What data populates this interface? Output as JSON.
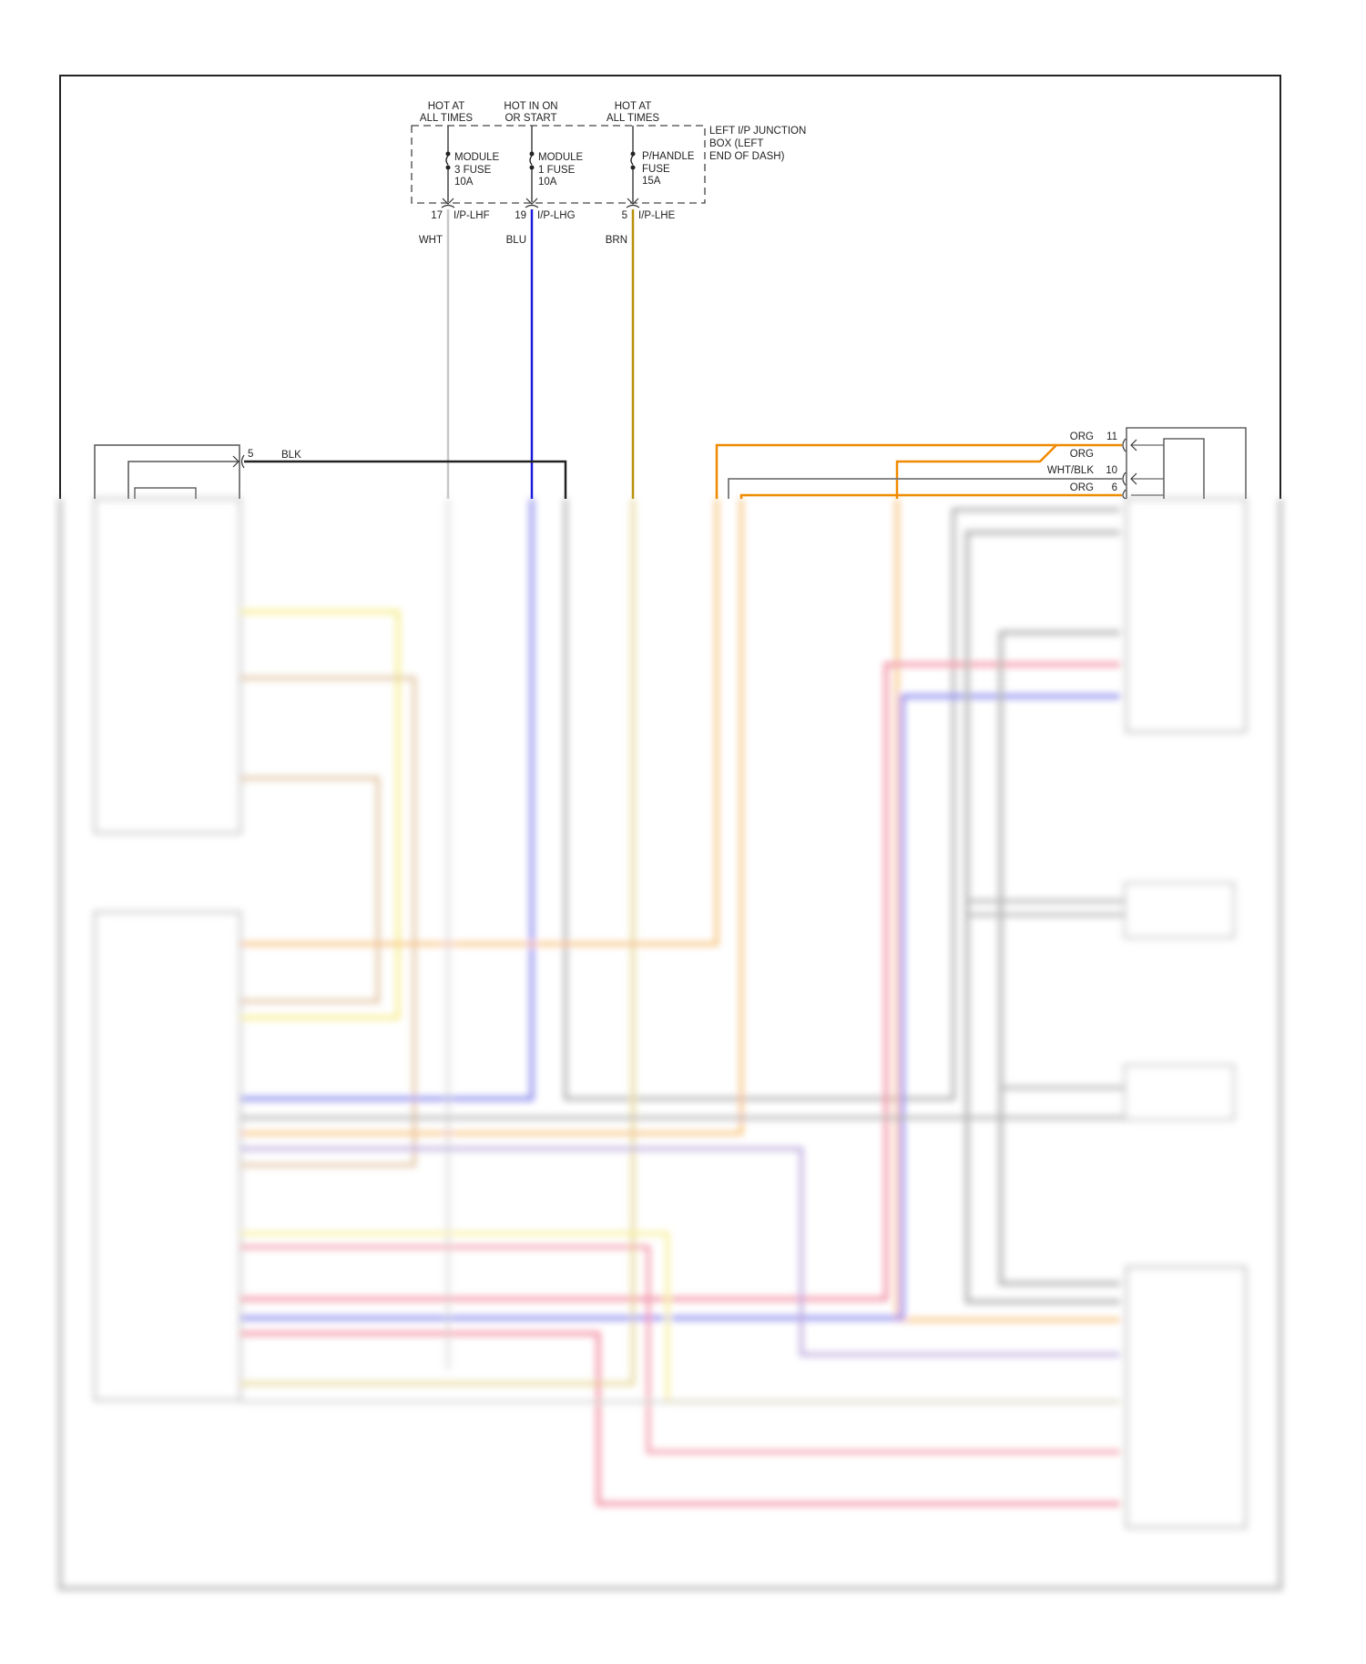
{
  "power_sources": [
    {
      "label_line1": "HOT AT",
      "label_line2": "ALL TIMES",
      "fuse_line1": "MODULE",
      "fuse_line2": "3 FUSE",
      "fuse_rating": "10A",
      "pin": "17",
      "connector": "I/P-LHF",
      "wire_color": "WHT",
      "wire_hex": "#c8c8c8"
    },
    {
      "label_line1": "HOT IN ON",
      "label_line2": "OR START",
      "fuse_line1": "MODULE",
      "fuse_line2": "1 FUSE",
      "fuse_rating": "10A",
      "pin": "19",
      "connector": "I/P-LHG",
      "wire_color": "BLU",
      "wire_hex": "#1a1adc"
    },
    {
      "label_line1": "HOT AT",
      "label_line2": "ALL TIMES",
      "fuse_line1": "P/HANDLE",
      "fuse_line2": "FUSE",
      "fuse_rating": "15A",
      "pin": "5",
      "connector": "I/P-LHE",
      "wire_color": "BRN",
      "wire_hex": "#b8900a"
    }
  ],
  "junction_box": {
    "line1": "LEFT I/P JUNCTION",
    "line2": "BOX (LEFT",
    "line3": "END OF DASH)"
  },
  "ground_wire": {
    "pin": "5",
    "color": "BLK",
    "hex": "#222222"
  },
  "right_connector_wires": [
    {
      "color": "ORG",
      "pin": "11",
      "hex": "#f08a00"
    },
    {
      "color": "ORG",
      "pin": "",
      "hex": "#f08a00"
    },
    {
      "color": "WHT/BLK",
      "pin": "10",
      "hex": "#777777"
    },
    {
      "color": "ORG",
      "pin": "6",
      "hex": "#f08a00"
    }
  ],
  "colors": {
    "red": "#e84060",
    "blue": "#3030e0",
    "yellow": "#f0e040",
    "gray": "#888888",
    "orange": "#f08a00",
    "tan": "#c89050",
    "purple": "#8060c0"
  }
}
